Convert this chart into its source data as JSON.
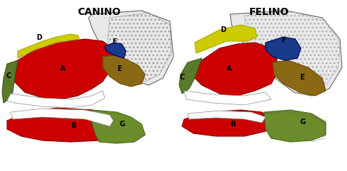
{
  "title_left": "CANINO",
  "title_right": "FELINO",
  "title_fontsize": 10,
  "title_fontweight": "bold",
  "bg_color": "#ffffff",
  "colors": {
    "A_maxilar": "#cc0000",
    "B_mandibular": "#cc0000",
    "C_incisiva": "#5a7a2a",
    "D_nasal_frontal": "#cccc00",
    "E_zigomatica": "#8b6914",
    "F_orbital": "#1a3a8a",
    "G_articulacao": "#6b8c2a",
    "skull_outline": "#c8c8c8",
    "skull_fill": "#f0f0f0"
  },
  "labels": {
    "A": "A",
    "B": "B",
    "C": "C",
    "D": "D",
    "E": "E",
    "F": "F",
    "G": "G"
  },
  "figsize": [
    4.9,
    2.41
  ],
  "dpi": 100
}
